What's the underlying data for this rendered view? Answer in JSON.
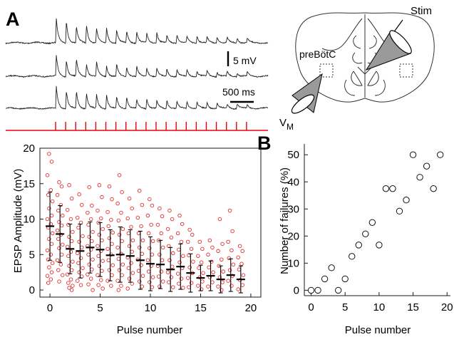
{
  "panel_a_label": "A",
  "panel_b_label": "B",
  "traces": {
    "scale_voltage": "5 mV",
    "scale_time": "500 ms",
    "stim_pulse_count": 20
  },
  "schematic": {
    "region_label": "preBötC",
    "stim_label": "Stim",
    "record_label_main": "V",
    "record_label_sub": "M"
  },
  "colors": {
    "stim": "#e8000b",
    "points_a": "#e03030",
    "ink": "#1a1a1a"
  },
  "chart_data": [
    {
      "type": "scatter",
      "title": "",
      "xlabel": "Pulse number",
      "ylabel": "EPSP Amplitude (mV)",
      "xlim": [
        -1,
        21
      ],
      "ylim": [
        -1,
        20
      ],
      "xticks": [
        0,
        5,
        10,
        15,
        20
      ],
      "yticks": [
        0,
        5,
        10,
        15,
        20
      ],
      "mean_sd": {
        "x": [
          0,
          1,
          2,
          3,
          4,
          5,
          6,
          7,
          8,
          9,
          10,
          11,
          12,
          13,
          14,
          15,
          16,
          17,
          18,
          19
        ],
        "mean": [
          9.0,
          7.9,
          5.8,
          5.5,
          6.0,
          5.7,
          4.9,
          5.0,
          4.8,
          4.2,
          3.7,
          3.6,
          2.9,
          3.3,
          2.4,
          1.7,
          2.0,
          1.5,
          2.1,
          1.5
        ],
        "sd": [
          4.8,
          4.0,
          3.5,
          3.8,
          3.6,
          3.8,
          3.6,
          3.9,
          3.7,
          4.1,
          3.8,
          3.4,
          3.1,
          3.2,
          2.7,
          1.8,
          2.1,
          1.9,
          2.3,
          1.9
        ]
      },
      "points": [
        {
          "x": 0,
          "y": [
            19.2,
            18.1,
            16.2,
            14.1,
            13.4,
            12.5,
            11.5,
            10.5,
            10.0,
            9.3,
            8.8,
            8.0,
            7.2,
            6.5,
            5.6,
            5.0,
            4.3,
            3.8,
            3.2,
            2.5,
            2.0,
            1.5,
            1.0
          ]
        },
        {
          "x": 1,
          "y": [
            15.2,
            14.6,
            13.4,
            12.0,
            11.2,
            10.5,
            9.6,
            9.1,
            8.4,
            7.8,
            7.2,
            6.4,
            5.9,
            5.0,
            4.2,
            3.6,
            2.8,
            2.1,
            1.2
          ]
        },
        {
          "x": 2,
          "y": [
            14.8,
            12.9,
            11.3,
            10.0,
            9.2,
            8.2,
            7.5,
            6.9,
            6.1,
            5.4,
            4.8,
            4.0,
            3.4,
            2.8,
            2.2,
            1.5,
            1.0,
            0.6,
            0.3,
            0.0
          ]
        },
        {
          "x": 3,
          "y": [
            13.5,
            12.0,
            10.2,
            9.5,
            8.8,
            7.6,
            6.8,
            6.0,
            5.2,
            4.5,
            3.8,
            3.1,
            2.5,
            1.9,
            1.3,
            0.7
          ]
        },
        {
          "x": 4,
          "y": [
            14.5,
            11.9,
            10.9,
            10.0,
            9.2,
            8.2,
            7.5,
            6.9,
            6.2,
            5.7,
            5.0,
            4.3,
            3.6,
            2.9,
            2.2,
            1.6,
            0.8,
            0.0
          ]
        },
        {
          "x": 5,
          "y": [
            14.8,
            13.1,
            11.2,
            10.1,
            9.5,
            8.6,
            7.8,
            7.0,
            6.2,
            5.5,
            4.8,
            4.1,
            3.4,
            2.7,
            2.1,
            1.4,
            0.7,
            0.2
          ]
        },
        {
          "x": 6,
          "y": [
            14.6,
            12.8,
            11.0,
            9.9,
            9.0,
            8.1,
            7.3,
            6.5,
            5.8,
            5.0,
            4.2,
            3.5,
            2.8,
            2.1,
            1.3,
            0.6
          ]
        },
        {
          "x": 7,
          "y": [
            16.2,
            13.8,
            12.2,
            10.9,
            9.8,
            8.6,
            7.8,
            6.9,
            6.0,
            5.1,
            4.4,
            3.6,
            2.8,
            2.1,
            1.3,
            0.6,
            0.0
          ]
        },
        {
          "x": 8,
          "y": [
            12.9,
            11.5,
            10.1,
            8.9,
            8.0,
            7.0,
            6.2,
            5.4,
            4.6,
            3.8,
            3.1,
            2.4,
            1.6,
            0.9,
            0.2
          ]
        },
        {
          "x": 9,
          "y": [
            14.0,
            12.0,
            10.2,
            9.0,
            8.0,
            7.0,
            6.0,
            5.1,
            4.3,
            3.5,
            2.7,
            2.0,
            1.2,
            0.5
          ]
        },
        {
          "x": 10,
          "y": [
            12.8,
            11.9,
            10.5,
            9.2,
            8.0,
            6.9,
            5.9,
            5.0,
            4.2,
            3.4,
            2.6,
            1.8,
            1.1,
            0.4
          ]
        },
        {
          "x": 11,
          "y": [
            11.5,
            10.4,
            9.2,
            8.0,
            7.0,
            6.0,
            5.0,
            4.2,
            3.4,
            2.6,
            1.9,
            1.2,
            0.5
          ]
        },
        {
          "x": 12,
          "y": [
            11.2,
            10.0,
            8.6,
            7.4,
            6.2,
            5.2,
            4.2,
            3.3,
            2.5,
            1.8,
            1.1,
            0.4
          ]
        },
        {
          "x": 13,
          "y": [
            10.5,
            9.3,
            8.0,
            6.8,
            5.7,
            4.8,
            3.9,
            3.1,
            2.3,
            1.6,
            0.9,
            0.3
          ]
        },
        {
          "x": 14,
          "y": [
            8.5,
            7.8,
            6.8,
            5.8,
            4.9,
            4.0,
            3.2,
            2.4,
            1.7,
            1.0,
            0.4
          ]
        },
        {
          "x": 15,
          "y": [
            6.8,
            5.8,
            4.8,
            3.9,
            3.1,
            2.4,
            1.8,
            1.2,
            0.6,
            0.1
          ]
        },
        {
          "x": 16,
          "y": [
            7.0,
            6.0,
            5.0,
            4.0,
            3.2,
            2.5,
            1.8,
            1.1,
            0.5
          ]
        },
        {
          "x": 17,
          "y": [
            10.0,
            6.5,
            5.5,
            4.3,
            3.4,
            2.6,
            1.8,
            1.1,
            0.5,
            0.0
          ]
        },
        {
          "x": 18,
          "y": [
            11.2,
            8.3,
            6.8,
            5.6,
            4.5,
            3.6,
            2.8,
            2.0,
            1.3,
            0.6
          ]
        },
        {
          "x": 19,
          "y": [
            6.2,
            5.5,
            4.6,
            3.7,
            2.9,
            2.1,
            1.4,
            0.7,
            0.1
          ]
        }
      ]
    },
    {
      "type": "scatter",
      "title": "",
      "xlabel": "Pulse number",
      "ylabel": "Number of failures (%)",
      "xlim": [
        -1,
        20.5
      ],
      "ylim": [
        -2,
        54
      ],
      "xticks": [
        0,
        5,
        10,
        15,
        20
      ],
      "yticks": [
        0,
        10,
        20,
        30,
        40,
        50
      ],
      "x": [
        0,
        1,
        2,
        3,
        4,
        5,
        6,
        7,
        8,
        9,
        10,
        11,
        12,
        13,
        14,
        15,
        16,
        17,
        18,
        19
      ],
      "y": [
        0,
        0,
        4.2,
        8.3,
        0,
        4.2,
        12.5,
        16.7,
        20.8,
        25.0,
        16.7,
        37.5,
        37.5,
        29.2,
        33.3,
        50.0,
        41.7,
        45.8,
        37.5,
        50.0
      ]
    }
  ]
}
